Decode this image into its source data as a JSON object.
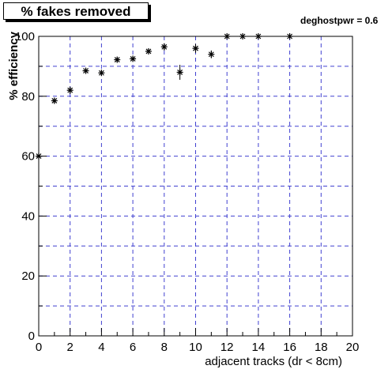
{
  "title": "% fakes removed",
  "annotation": "deghostpwr = 0.6",
  "chart_data": {
    "type": "scatter",
    "title": "% fakes removed",
    "xlabel": "adjacent tracks (dr < 8cm)",
    "ylabel": "% efficiency",
    "xlim": [
      0,
      20
    ],
    "ylim": [
      0,
      100
    ],
    "x_ticks": [
      "0",
      "2",
      "4",
      "6",
      "8",
      "10",
      "12",
      "14",
      "16",
      "18",
      "20"
    ],
    "y_ticks": [
      "0",
      "20",
      "40",
      "60",
      "80",
      "100"
    ],
    "grid": true,
    "marker": "asterisk",
    "series": [
      {
        "points": [
          {
            "x": 0,
            "y": 60.0,
            "err": 0.0
          },
          {
            "x": 1,
            "y": 78.5,
            "err": 1.0
          },
          {
            "x": 2,
            "y": 82.0,
            "err": 1.2
          },
          {
            "x": 3,
            "y": 88.5,
            "err": 0.9
          },
          {
            "x": 4,
            "y": 87.8,
            "err": 1.0
          },
          {
            "x": 5,
            "y": 92.2,
            "err": 0.8
          },
          {
            "x": 6,
            "y": 92.5,
            "err": 0.9
          },
          {
            "x": 7,
            "y": 95.0,
            "err": 0.8
          },
          {
            "x": 8,
            "y": 96.5,
            "err": 1.2
          },
          {
            "x": 9,
            "y": 88.0,
            "err": 2.5
          },
          {
            "x": 10,
            "y": 96.0,
            "err": 1.5
          },
          {
            "x": 11,
            "y": 94.0,
            "err": 1.3
          },
          {
            "x": 12,
            "y": 100.0,
            "err": 0.0
          },
          {
            "x": 13,
            "y": 100.0,
            "err": 0.0
          },
          {
            "x": 14,
            "y": 100.0,
            "err": 0.0
          },
          {
            "x": 16,
            "y": 100.0,
            "err": 0.0
          }
        ]
      }
    ]
  }
}
